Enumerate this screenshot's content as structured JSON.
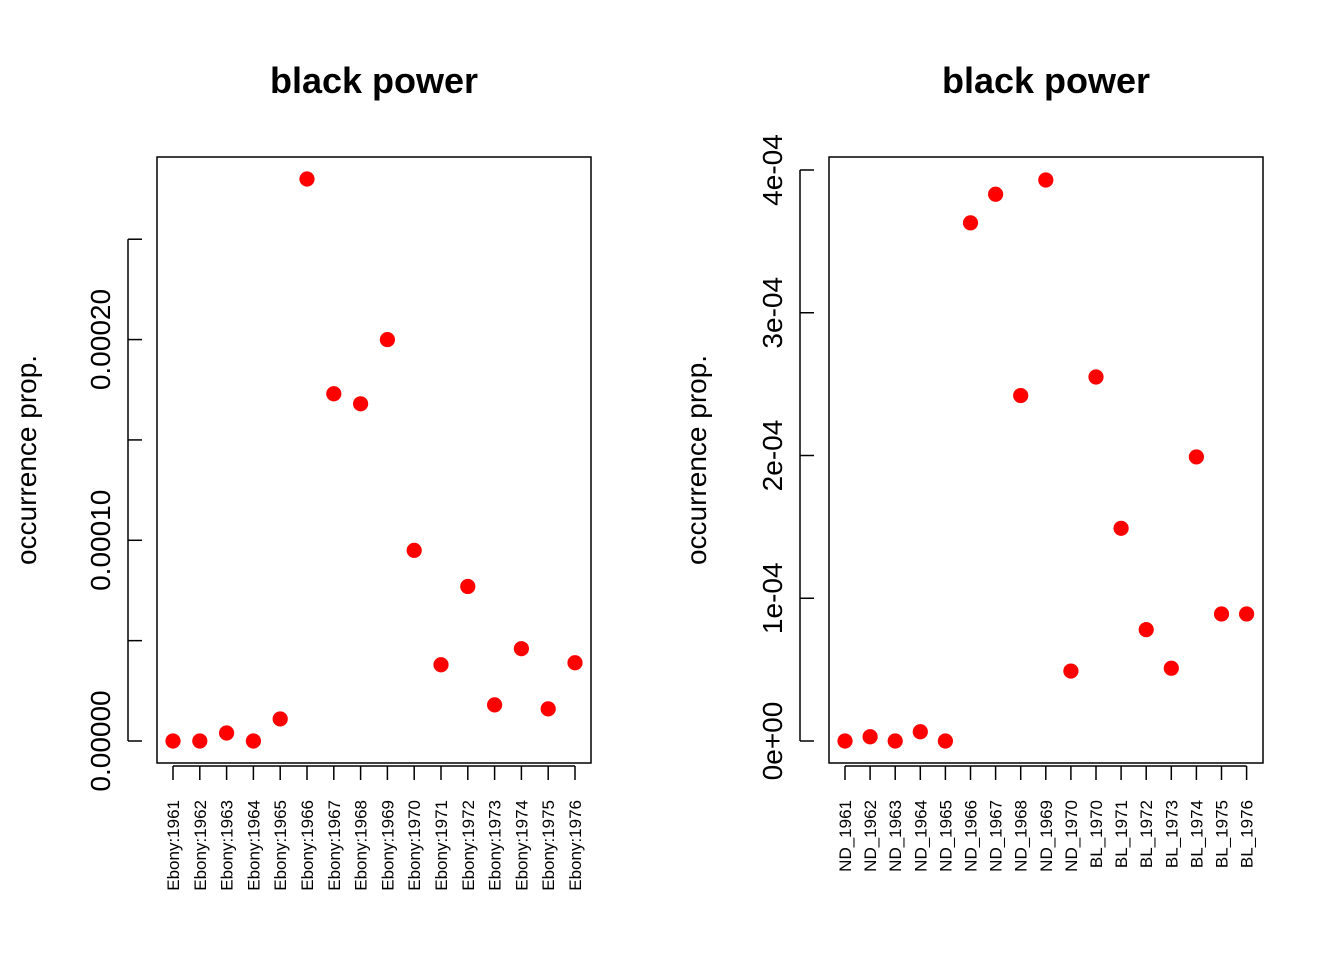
{
  "chart_data": [
    {
      "type": "scatter",
      "title": "black power",
      "xlabel": "",
      "ylabel": "occurrence prop.",
      "categories": [
        "Ebony:1961",
        "Ebony:1962",
        "Ebony:1963",
        "Ebony:1964",
        "Ebony:1965",
        "Ebony:1966",
        "Ebony:1967",
        "Ebony:1968",
        "Ebony:1969",
        "Ebony:1970",
        "Ebony:1971",
        "Ebony:1972",
        "Ebony:1973",
        "Ebony:1974",
        "Ebony:1975",
        "Ebony:1976"
      ],
      "values": [
        0.0,
        0.0,
        4e-06,
        0.0,
        1.1e-05,
        0.00028,
        0.000173,
        0.000168,
        0.0002,
        9.5e-05,
        3.8e-05,
        7.7e-05,
        1.8e-05,
        4.6e-05,
        1.6e-05,
        3.9e-05
      ],
      "ylim": [
        0,
        0.00028
      ],
      "ytick_values": [
        0,
        5e-05,
        0.0001,
        0.00015,
        0.0002,
        0.00025
      ],
      "ytick_labels": [
        "0.00000",
        "",
        "0.00010",
        "",
        "0.00020",
        ""
      ],
      "marker_color": "#ff0000",
      "grid": false
    },
    {
      "type": "scatter",
      "title": "black power",
      "xlabel": "",
      "ylabel": "occurrence prop.",
      "categories": [
        "ND_1961",
        "ND_1962",
        "ND_1963",
        "ND_1964",
        "ND_1965",
        "ND_1966",
        "ND_1967",
        "ND_1968",
        "ND_1969",
        "ND_1970",
        "BL_1970",
        "BL_1971",
        "BL_1972",
        "BL_1973",
        "BL_1974",
        "BL_1975",
        "BL_1976"
      ],
      "values": [
        0.0,
        3e-06,
        0.0,
        6.5e-06,
        0.0,
        0.000363,
        0.000383,
        0.000242,
        0.000393,
        4.9e-05,
        0.000255,
        0.000149,
        7.8e-05,
        5.1e-05,
        0.000199,
        8.9e-05,
        8.9e-05
      ],
      "ylim": [
        0,
        0.0004
      ],
      "ytick_values": [
        0,
        0.0001,
        0.0002,
        0.0003,
        0.0004
      ],
      "ytick_labels": [
        "0e+00",
        "1e-04",
        "2e-04",
        "3e-04",
        "4e-04"
      ],
      "marker_color": "#ff0000",
      "grid": false
    }
  ]
}
